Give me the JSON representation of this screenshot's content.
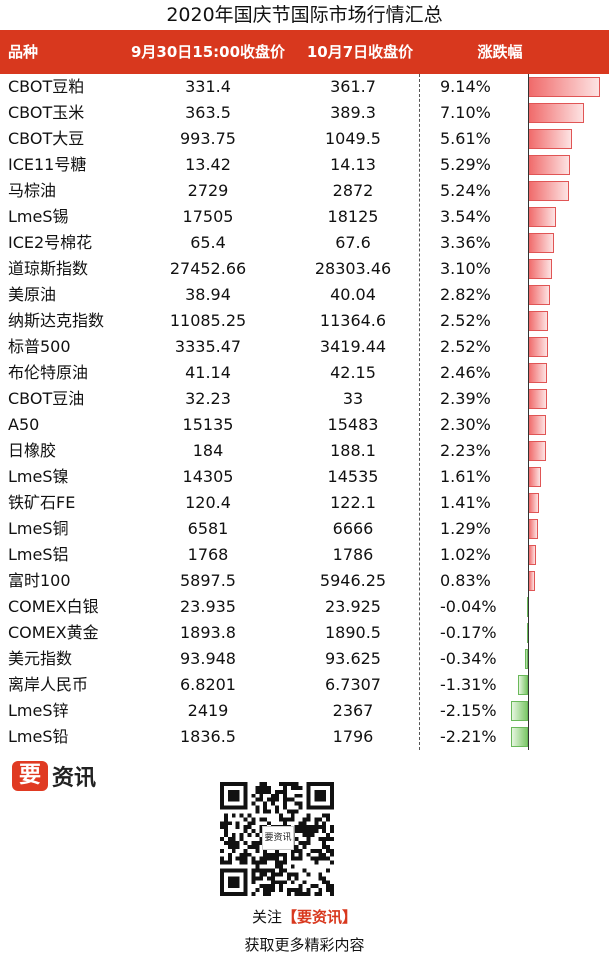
{
  "title": "2020年国庆节国际市场行情汇总",
  "header": {
    "name": "品种",
    "sep30": "9月30日15:00收盘价",
    "oct7": "10月7日收盘价",
    "change": "涨跌幅"
  },
  "colors": {
    "header_bg": "#d8381e",
    "up": "#f06a6a",
    "down": "#7ec86a",
    "brand": "#e03a22"
  },
  "rows": [
    {
      "name": "CBOT豆粕",
      "sep30": "331.4",
      "oct7": "361.7",
      "change": "9.14%",
      "pct": 9.14
    },
    {
      "name": "CBOT玉米",
      "sep30": "363.5",
      "oct7": "389.3",
      "change": "7.10%",
      "pct": 7.1
    },
    {
      "name": "CBOT大豆",
      "sep30": "993.75",
      "oct7": "1049.5",
      "change": "5.61%",
      "pct": 5.61
    },
    {
      "name": "ICE11号糖",
      "sep30": "13.42",
      "oct7": "14.13",
      "change": "5.29%",
      "pct": 5.29
    },
    {
      "name": "马棕油",
      "sep30": "2729",
      "oct7": "2872",
      "change": "5.24%",
      "pct": 5.24
    },
    {
      "name": "LmeS锡",
      "sep30": "17505",
      "oct7": "18125",
      "change": "3.54%",
      "pct": 3.54
    },
    {
      "name": "ICE2号棉花",
      "sep30": "65.4",
      "oct7": "67.6",
      "change": "3.36%",
      "pct": 3.36
    },
    {
      "name": "道琼斯指数",
      "sep30": "27452.66",
      "oct7": "28303.46",
      "change": "3.10%",
      "pct": 3.1
    },
    {
      "name": "美原油",
      "sep30": "38.94",
      "oct7": "40.04",
      "change": "2.82%",
      "pct": 2.82
    },
    {
      "name": "纳斯达克指数",
      "sep30": "11085.25",
      "oct7": "11364.6",
      "change": "2.52%",
      "pct": 2.52
    },
    {
      "name": "标普500",
      "sep30": "3335.47",
      "oct7": "3419.44",
      "change": "2.52%",
      "pct": 2.52
    },
    {
      "name": "布伦特原油",
      "sep30": "41.14",
      "oct7": "42.15",
      "change": "2.46%",
      "pct": 2.46
    },
    {
      "name": "CBOT豆油",
      "sep30": "32.23",
      "oct7": "33",
      "change": "2.39%",
      "pct": 2.39
    },
    {
      "name": "A50",
      "sep30": "15135",
      "oct7": "15483",
      "change": "2.30%",
      "pct": 2.3
    },
    {
      "name": "日橡胶",
      "sep30": "184",
      "oct7": "188.1",
      "change": "2.23%",
      "pct": 2.23
    },
    {
      "name": "LmeS镍",
      "sep30": "14305",
      "oct7": "14535",
      "change": "1.61%",
      "pct": 1.61
    },
    {
      "name": "铁矿石FE",
      "sep30": "120.4",
      "oct7": "122.1",
      "change": "1.41%",
      "pct": 1.41
    },
    {
      "name": "LmeS铜",
      "sep30": "6581",
      "oct7": "6666",
      "change": "1.29%",
      "pct": 1.29
    },
    {
      "name": "LmeS铝",
      "sep30": "1768",
      "oct7": "1786",
      "change": "1.02%",
      "pct": 1.02
    },
    {
      "name": "富时100",
      "sep30": "5897.5",
      "oct7": "5946.25",
      "change": "0.83%",
      "pct": 0.83
    },
    {
      "name": "COMEX白银",
      "sep30": "23.935",
      "oct7": "23.925",
      "change": "-0.04%",
      "pct": -0.04
    },
    {
      "name": "COMEX黄金",
      "sep30": "1893.8",
      "oct7": "1890.5",
      "change": "-0.17%",
      "pct": -0.17
    },
    {
      "name": "美元指数",
      "sep30": "93.948",
      "oct7": "93.625",
      "change": "-0.34%",
      "pct": -0.34
    },
    {
      "name": "离岸人民币",
      "sep30": "6.8201",
      "oct7": "6.7307",
      "change": "-1.31%",
      "pct": -1.31
    },
    {
      "name": "LmeS锌",
      "sep30": "2419",
      "oct7": "2367",
      "change": "-2.15%",
      "pct": -2.15
    },
    {
      "name": "LmeS铅",
      "sep30": "1836.5",
      "oct7": "1796",
      "change": "-2.21%",
      "pct": -2.21
    }
  ],
  "footer": {
    "logo_mark": "要",
    "logo_text": "资讯",
    "qr_badge": "要资讯",
    "follow_prefix": "关注",
    "follow_brand": "【要资讯】",
    "more": "获取更多精彩内容"
  }
}
